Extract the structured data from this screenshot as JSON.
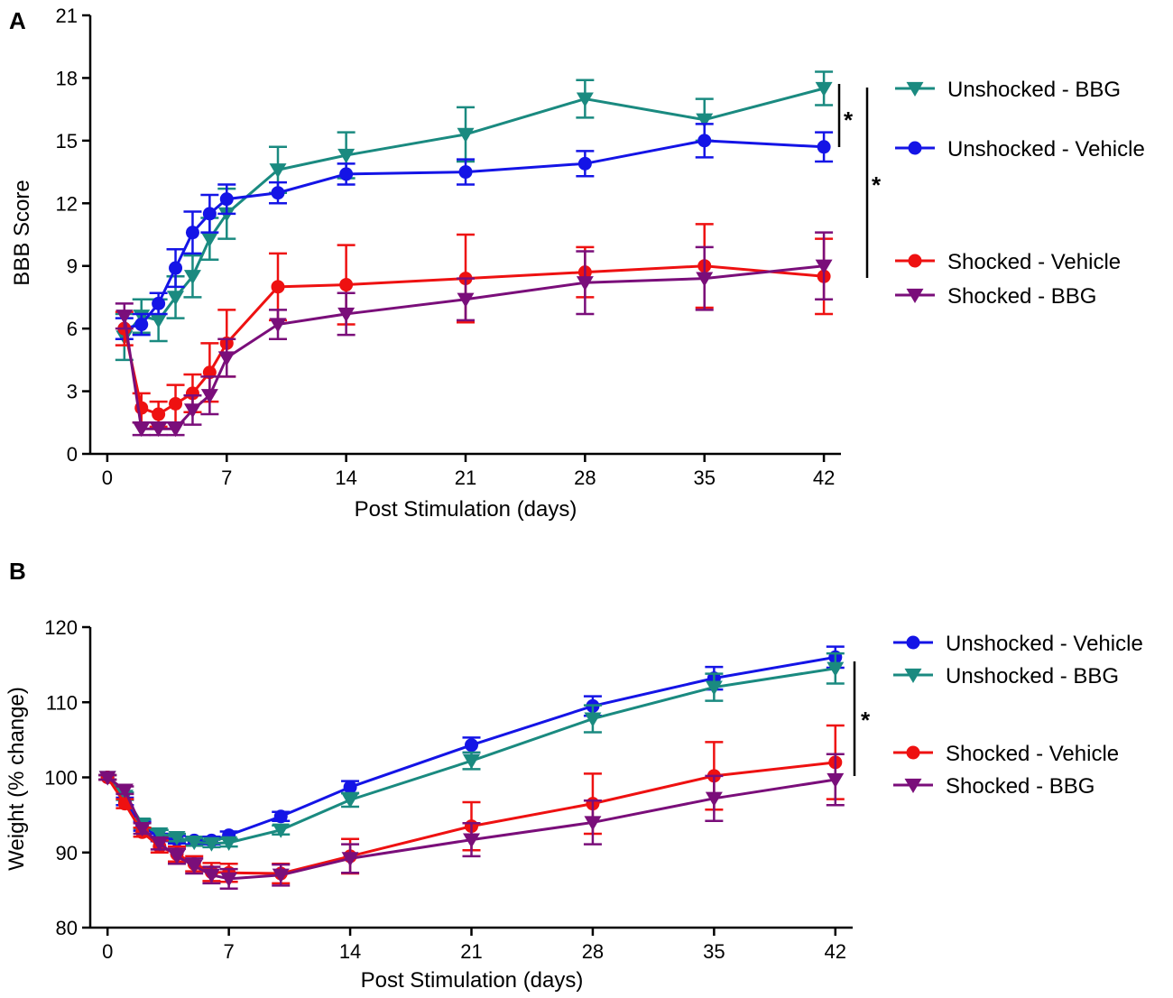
{
  "colors": {
    "teal": "#1a8a80",
    "blue": "#1414e6",
    "red": "#ee1111",
    "purple": "#7a0e7a"
  },
  "chart_data": [
    {
      "type": "line",
      "panel_label": "A",
      "title": "",
      "xlabel": "Post Stimulation (days)",
      "ylabel": "BBB Score",
      "xlim": [
        -1,
        43
      ],
      "ylim": [
        0,
        21
      ],
      "xticks": [
        0,
        7,
        14,
        21,
        28,
        35,
        42
      ],
      "yticks": [
        0,
        3,
        6,
        9,
        12,
        15,
        18,
        21
      ],
      "x": [
        1,
        2,
        3,
        4,
        5,
        6,
        7,
        10,
        14,
        21,
        28,
        35,
        42
      ],
      "series": [
        {
          "name": "Unshocked - BBG",
          "color": "teal",
          "marker": "triangle-down",
          "values": [
            5.6,
            6.6,
            6.4,
            7.5,
            8.5,
            10.3,
            11.5,
            13.6,
            14.3,
            15.3,
            17.0,
            16.0,
            17.5
          ],
          "errors": [
            1.1,
            0.8,
            1.0,
            1.0,
            1.0,
            1.0,
            1.2,
            1.1,
            1.1,
            1.3,
            0.9,
            1.0,
            0.8
          ]
        },
        {
          "name": "Unshocked - Vehicle",
          "color": "blue",
          "marker": "circle",
          "values": [
            6.0,
            6.2,
            7.2,
            8.9,
            10.6,
            11.5,
            12.2,
            12.5,
            13.4,
            13.5,
            13.9,
            15.0,
            14.7
          ],
          "errors": [
            0.5,
            0.5,
            0.5,
            0.9,
            1.0,
            0.9,
            0.7,
            0.5,
            0.5,
            0.6,
            0.6,
            0.8,
            0.7
          ]
        },
        {
          "name": "Shocked - Vehicle",
          "color": "red",
          "marker": "circle",
          "values": [
            6.0,
            2.2,
            1.9,
            2.4,
            2.9,
            3.9,
            5.3,
            8.0,
            8.1,
            8.4,
            8.7,
            9.0,
            8.5
          ],
          "errors": [
            0.8,
            0.7,
            0.6,
            0.9,
            0.9,
            1.4,
            1.6,
            1.6,
            1.9,
            2.1,
            1.2,
            2.0,
            1.8
          ]
        },
        {
          "name": "Shocked - BBG",
          "color": "purple",
          "marker": "triangle-down",
          "values": [
            6.6,
            1.2,
            1.2,
            1.2,
            2.1,
            2.8,
            4.6,
            6.2,
            6.7,
            7.4,
            8.2,
            8.4,
            9.0
          ],
          "errors": [
            0.6,
            0.3,
            0.3,
            0.3,
            0.7,
            0.9,
            0.9,
            0.7,
            1.0,
            1.0,
            1.5,
            1.5,
            1.6
          ]
        }
      ],
      "legend": [
        "Unshocked - BBG",
        "Unshocked - Vehicle",
        "Shocked - Vehicle",
        "Shocked - BBG"
      ],
      "significance": [
        "*",
        "*"
      ]
    },
    {
      "type": "line",
      "panel_label": "B",
      "title": "",
      "xlabel": "Post Stimulation (days)",
      "ylabel": "Weight (% change)",
      "xlim": [
        -1,
        43
      ],
      "ylim": [
        80,
        120
      ],
      "xticks": [
        0,
        7,
        14,
        21,
        28,
        35,
        42
      ],
      "yticks": [
        80,
        90,
        100,
        110,
        120
      ],
      "x": [
        0,
        1,
        2,
        3,
        4,
        5,
        6,
        7,
        10,
        14,
        21,
        28,
        35,
        42
      ],
      "series": [
        {
          "name": "Unshocked - Vehicle",
          "color": "blue",
          "marker": "circle",
          "values": [
            100,
            96.8,
            93.5,
            92.0,
            91.7,
            91.6,
            91.6,
            92.3,
            94.8,
            98.7,
            104.3,
            109.5,
            113.2,
            116.0
          ],
          "errors": [
            0.3,
            0.5,
            0.6,
            0.5,
            0.5,
            0.5,
            0.5,
            0.5,
            0.6,
            0.8,
            1.0,
            1.3,
            1.5,
            1.4
          ]
        },
        {
          "name": "Unshocked - BBG",
          "color": "teal",
          "marker": "triangle-down",
          "values": [
            100,
            97.5,
            93.8,
            92.5,
            92.0,
            91.4,
            91.2,
            91.3,
            93.0,
            97.0,
            102.2,
            107.8,
            112.0,
            114.5
          ],
          "errors": [
            0.3,
            0.5,
            0.6,
            0.5,
            0.5,
            0.5,
            0.5,
            0.5,
            0.6,
            0.9,
            1.1,
            1.8,
            1.8,
            2.0
          ]
        },
        {
          "name": "Shocked - Vehicle",
          "color": "red",
          "marker": "circle",
          "values": [
            100,
            96.5,
            92.7,
            90.8,
            89.8,
            88.5,
            87.4,
            87.3,
            87.2,
            89.5,
            93.5,
            96.5,
            100.2,
            102.0
          ],
          "errors": [
            0.3,
            0.6,
            0.6,
            0.8,
            1.0,
            1.0,
            1.2,
            1.2,
            1.3,
            2.3,
            3.2,
            4.0,
            4.5,
            4.9
          ]
        },
        {
          "name": "Shocked - BBG",
          "color": "purple",
          "marker": "triangle-down",
          "values": [
            100,
            98.3,
            93.2,
            91.2,
            89.5,
            88.2,
            87.0,
            86.5,
            87.0,
            89.2,
            91.7,
            94.0,
            97.2,
            99.7
          ],
          "errors": [
            0.3,
            0.5,
            0.7,
            0.8,
            1.0,
            1.0,
            1.1,
            1.3,
            1.4,
            1.9,
            2.2,
            2.9,
            3.0,
            3.4
          ]
        }
      ],
      "legend": [
        "Unshocked - Vehicle",
        "Unshocked - BBG",
        "Shocked - Vehicle",
        "Shocked - BBG"
      ],
      "significance": [
        "*"
      ]
    }
  ]
}
